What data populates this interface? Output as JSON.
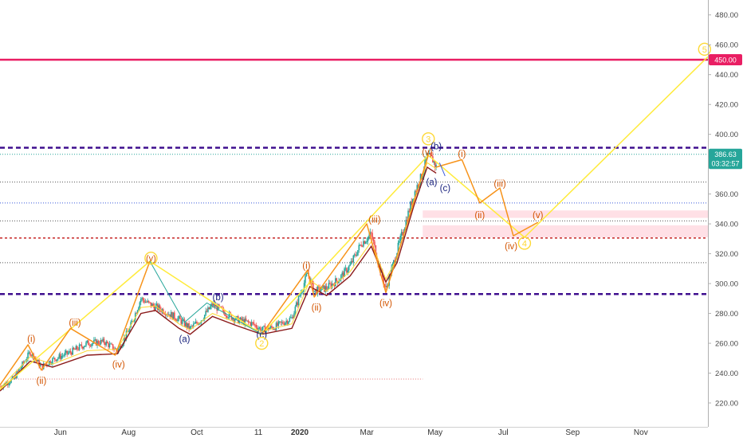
{
  "chart_data": {
    "type": "candlestick",
    "title": "",
    "x_range": [
      "2019-04-08",
      "2020-12-31"
    ],
    "ylim": [
      204,
      490
    ],
    "grid": false,
    "y_ticks": [
      "480.00",
      "460.00",
      "440.00",
      "420.00",
      "400.00",
      "380.00",
      "360.00",
      "340.00",
      "320.00",
      "300.00",
      "280.00",
      "260.00",
      "240.00",
      "220.00"
    ],
    "x_ticks": [
      {
        "date": "2019-06-01",
        "label": "Jun",
        "bold": false
      },
      {
        "date": "2019-08-01",
        "label": "Aug",
        "bold": false
      },
      {
        "date": "2019-10-01",
        "label": "Oct",
        "bold": false
      },
      {
        "date": "2019-11-25",
        "label": "11",
        "bold": false
      },
      {
        "date": "2020-01-01",
        "label": "2020",
        "bold": true
      },
      {
        "date": "2020-03-01",
        "label": "Mar",
        "bold": false
      },
      {
        "date": "2020-05-01",
        "label": "May",
        "bold": false
      },
      {
        "date": "2020-07-01",
        "label": "Jul",
        "bold": false
      },
      {
        "date": "2020-09-01",
        "label": "Sep",
        "bold": false
      },
      {
        "date": "2020-11-01",
        "label": "Nov",
        "bold": false
      }
    ],
    "price_badges": [
      {
        "value": 450,
        "label": "450.00",
        "color": "#e91e63"
      },
      {
        "value": 386.63,
        "label": "386.63",
        "color": "#26a69a"
      },
      {
        "value": 380.5,
        "label": "03:32:57",
        "color": "#26a69a"
      }
    ],
    "hlines": [
      {
        "value": 450,
        "color": "#e91e63",
        "width": 2.5,
        "dash": "",
        "to_axis": true
      },
      {
        "value": 391,
        "color": "#3f0f8f",
        "width": 2.5,
        "dash": "6,4"
      },
      {
        "value": 386.63,
        "color": "#26a69a",
        "width": 1,
        "dash": "1,2"
      },
      {
        "value": 368,
        "color": "#555555",
        "width": 1,
        "dash": "1,2"
      },
      {
        "value": 354,
        "color": "#3b5bdb",
        "width": 1,
        "dash": "1,2"
      },
      {
        "value": 342,
        "color": "#555555",
        "width": 1,
        "dash": "1,2"
      },
      {
        "value": 330.5,
        "color": "#c62828",
        "width": 1.5,
        "dash": "3,3"
      },
      {
        "value": 314,
        "color": "#555555",
        "width": 1,
        "dash": "1,2"
      },
      {
        "value": 293,
        "color": "#3f0f8f",
        "width": 2.5,
        "dash": "6,4"
      }
    ],
    "partial_lines": [
      {
        "value": 236,
        "x0": "2019-04-20",
        "x1": "2020-04-20",
        "color": "#e57373",
        "dash": "1,2"
      }
    ],
    "zones": [
      {
        "from": "2020-04-20",
        "to": "2020-12-31",
        "low": 344,
        "high": 349,
        "color": "#ffe0e6"
      },
      {
        "from": "2020-04-20",
        "to": "2020-12-31",
        "low": 331,
        "high": 339,
        "color": "#ffe0e6"
      }
    ],
    "price_path": [
      [
        "2019-04-08",
        231
      ],
      [
        "2019-04-20",
        236
      ],
      [
        "2019-05-05",
        254
      ],
      [
        "2019-05-15",
        244
      ],
      [
        "2019-05-25",
        249
      ],
      [
        "2019-06-10",
        254
      ],
      [
        "2019-06-25",
        260
      ],
      [
        "2019-07-10",
        261
      ],
      [
        "2019-07-22",
        255
      ],
      [
        "2019-08-02",
        270
      ],
      [
        "2019-08-12",
        290
      ],
      [
        "2019-08-20",
        286
      ],
      [
        "2019-09-01",
        282
      ],
      [
        "2019-09-15",
        276
      ],
      [
        "2019-09-25",
        270
      ],
      [
        "2019-10-05",
        276
      ],
      [
        "2019-10-15",
        286
      ],
      [
        "2019-10-25",
        281
      ],
      [
        "2019-11-05",
        276
      ],
      [
        "2019-11-20",
        273
      ],
      [
        "2019-11-28",
        269
      ],
      [
        "2019-12-10",
        271
      ],
      [
        "2019-12-25",
        277
      ],
      [
        "2020-01-08",
        307
      ],
      [
        "2020-01-14",
        295
      ],
      [
        "2020-01-25",
        297
      ],
      [
        "2020-02-05",
        303
      ],
      [
        "2020-02-15",
        312
      ],
      [
        "2020-02-25",
        327
      ],
      [
        "2020-03-05",
        333
      ],
      [
        "2020-03-12",
        312
      ],
      [
        "2020-03-18",
        296
      ],
      [
        "2020-03-28",
        322
      ],
      [
        "2020-04-05",
        342
      ],
      [
        "2020-04-12",
        360
      ],
      [
        "2020-04-19",
        372
      ],
      [
        "2020-04-24",
        385
      ],
      [
        "2020-04-29",
        383
      ],
      [
        "2020-05-02",
        378
      ]
    ],
    "ma_red": [
      [
        "2019-04-08",
        228
      ],
      [
        "2019-05-05",
        248
      ],
      [
        "2019-05-25",
        244
      ],
      [
        "2019-06-25",
        252
      ],
      [
        "2019-07-22",
        253
      ],
      [
        "2019-08-12",
        280
      ],
      [
        "2019-08-25",
        282
      ],
      [
        "2019-09-15",
        270
      ],
      [
        "2019-09-25",
        266
      ],
      [
        "2019-10-15",
        278
      ],
      [
        "2019-11-05",
        272
      ],
      [
        "2019-11-28",
        266
      ],
      [
        "2019-12-25",
        270
      ],
      [
        "2020-01-10",
        298
      ],
      [
        "2020-01-25",
        292
      ],
      [
        "2020-02-15",
        305
      ],
      [
        "2020-03-05",
        325
      ],
      [
        "2020-03-18",
        301
      ],
      [
        "2020-03-28",
        314
      ],
      [
        "2020-04-12",
        352
      ],
      [
        "2020-04-24",
        378
      ],
      [
        "2020-05-02",
        374
      ]
    ],
    "ma_yellow": [
      [
        "2019-04-08",
        230
      ],
      [
        "2019-05-05",
        251
      ],
      [
        "2019-05-25",
        246
      ],
      [
        "2019-06-25",
        255
      ],
      [
        "2019-07-22",
        256
      ],
      [
        "2019-08-12",
        284
      ],
      [
        "2019-08-25",
        285
      ],
      [
        "2019-09-15",
        273
      ],
      [
        "2019-09-25",
        269
      ],
      [
        "2019-10-15",
        280
      ],
      [
        "2019-11-05",
        274
      ],
      [
        "2019-11-28",
        268
      ],
      [
        "2019-12-25",
        273
      ],
      [
        "2020-01-10",
        302
      ],
      [
        "2020-01-25",
        295
      ],
      [
        "2020-02-15",
        308
      ],
      [
        "2020-03-05",
        328
      ],
      [
        "2020-03-18",
        303
      ],
      [
        "2020-03-28",
        317
      ],
      [
        "2020-04-12",
        356
      ],
      [
        "2020-04-24",
        381
      ],
      [
        "2020-05-02",
        377
      ]
    ],
    "series_lines": [
      {
        "color": "#ffeb3b",
        "width": 1.5,
        "points": [
          [
            "2019-04-08",
            229
          ],
          [
            "2019-08-20",
            315
          ],
          [
            "2019-11-28",
            266
          ],
          [
            "2020-04-25",
            386
          ],
          [
            "2020-07-20",
            331
          ],
          [
            "2020-12-31",
            452
          ]
        ]
      },
      {
        "color": "#f7931a",
        "width": 1.5,
        "points": [
          [
            "2019-04-08",
            232
          ],
          [
            "2019-05-03",
            259
          ],
          [
            "2019-05-15",
            242
          ],
          [
            "2019-06-10",
            270
          ],
          [
            "2019-07-20",
            252
          ],
          [
            "2019-08-20",
            315
          ]
        ]
      },
      {
        "color": "#f7931a",
        "width": 1.5,
        "points": [
          [
            "2019-11-28",
            266
          ],
          [
            "2020-01-08",
            309
          ],
          [
            "2020-01-14",
            291
          ],
          [
            "2020-03-01",
            340
          ],
          [
            "2020-03-18",
            294
          ],
          [
            "2020-04-25",
            386
          ]
        ]
      },
      {
        "color": "#f7931a",
        "width": 1.5,
        "points": [
          [
            "2020-05-02",
            378
          ],
          [
            "2020-05-25",
            383
          ],
          [
            "2020-06-10",
            354
          ],
          [
            "2020-06-28",
            364
          ],
          [
            "2020-07-10",
            332
          ],
          [
            "2020-08-01",
            341
          ]
        ]
      },
      {
        "color": "#26a69a",
        "width": 1,
        "points": [
          [
            "2019-08-20",
            315
          ],
          [
            "2019-09-20",
            274
          ],
          [
            "2019-10-10",
            287
          ],
          [
            "2019-11-28",
            266
          ]
        ]
      },
      {
        "color": "#3b5bdb",
        "width": 1,
        "points": [
          [
            "2020-05-05",
            381
          ],
          [
            "2020-05-10",
            372
          ]
        ]
      }
    ],
    "annotations": [
      {
        "text": "(i)",
        "x": "2019-05-06",
        "y": 263,
        "color": "#d35400"
      },
      {
        "text": "(ii)",
        "x": "2019-05-15",
        "y": 235,
        "color": "#d35400"
      },
      {
        "text": "(iii)",
        "x": "2019-06-14",
        "y": 274,
        "color": "#d35400"
      },
      {
        "text": "(iv)",
        "x": "2019-07-23",
        "y": 246,
        "color": "#d35400"
      },
      {
        "text": "(v)",
        "x": "2019-08-21",
        "y": 317,
        "color": "#d35400",
        "circle": true,
        "circle_color": "#fdd835"
      },
      {
        "text": "(a)",
        "x": "2019-09-20",
        "y": 263,
        "color": "#1a237e"
      },
      {
        "text": "(b)",
        "x": "2019-10-20",
        "y": 291,
        "color": "#1a237e"
      },
      {
        "text": "(c)",
        "x": "2019-11-28",
        "y": 266,
        "color": "#1a237e"
      },
      {
        "text": "2",
        "x": "2019-11-28",
        "y": 260,
        "color": "#fdd835",
        "circle": true,
        "circle_color": "#fdd835"
      },
      {
        "text": "(i)",
        "x": "2020-01-07",
        "y": 312,
        "color": "#d35400"
      },
      {
        "text": "(ii)",
        "x": "2020-01-16",
        "y": 284,
        "color": "#d35400"
      },
      {
        "text": "(iii)",
        "x": "2020-03-08",
        "y": 343,
        "color": "#d35400"
      },
      {
        "text": "(iv)",
        "x": "2020-03-18",
        "y": 287,
        "color": "#d35400"
      },
      {
        "text": "3",
        "x": "2020-04-25",
        "y": 397,
        "color": "#fdd835",
        "circle": true,
        "circle_color": "#fdd835"
      },
      {
        "text": "(v)",
        "x": "2020-04-24",
        "y": 388,
        "color": "#d35400"
      },
      {
        "text": "(b)",
        "x": "2020-05-02",
        "y": 392,
        "color": "#1a237e"
      },
      {
        "text": "(a)",
        "x": "2020-04-28",
        "y": 368,
        "color": "#1a237e"
      },
      {
        "text": "(c)",
        "x": "2020-05-10",
        "y": 364,
        "color": "#1a237e"
      },
      {
        "text": "(i)",
        "x": "2020-05-25",
        "y": 387,
        "color": "#d35400"
      },
      {
        "text": "(ii)",
        "x": "2020-06-10",
        "y": 346,
        "color": "#d35400"
      },
      {
        "text": "(iii)",
        "x": "2020-06-28",
        "y": 367,
        "color": "#d35400"
      },
      {
        "text": "(iv)",
        "x": "2020-07-08",
        "y": 325,
        "color": "#d35400"
      },
      {
        "text": "4",
        "x": "2020-07-20",
        "y": 327,
        "color": "#fdd835",
        "circle": true,
        "circle_color": "#fdd835"
      },
      {
        "text": "(v)",
        "x": "2020-08-01",
        "y": 346,
        "color": "#d35400"
      },
      {
        "text": "5",
        "x": "2020-12-28",
        "y": 457,
        "color": "#fdd835",
        "circle": true,
        "circle_color": "#fdd835"
      }
    ],
    "colors": {
      "up": "#26a69a",
      "down": "#ef5350",
      "ma_red": "#8b1a1a",
      "ma_yellow": "#fdd835",
      "axis_text": "#4a4a4a"
    }
  }
}
